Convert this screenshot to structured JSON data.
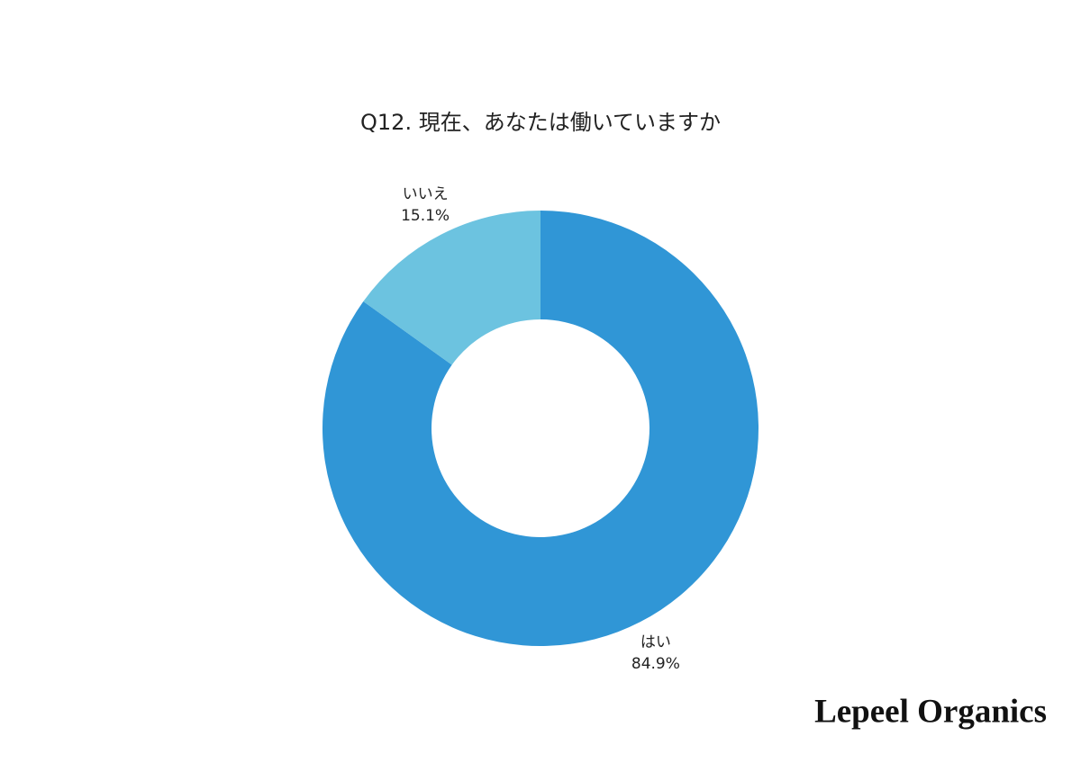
{
  "chart_data": {
    "type": "donut",
    "title": "Q12. 現在、あなたは働いていますか",
    "categories": [
      "はい",
      "いいえ"
    ],
    "values": [
      84.9,
      15.1
    ],
    "value_labels": [
      "84.9%",
      "15.1%"
    ],
    "colors": [
      "#3096d6",
      "#6cc3e0"
    ]
  },
  "watermark": "Lepeel Organics"
}
